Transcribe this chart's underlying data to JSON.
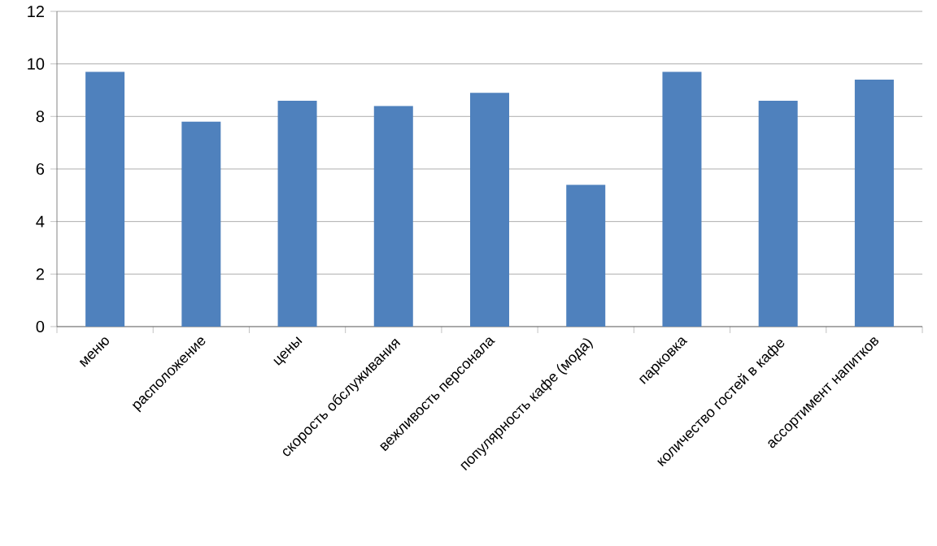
{
  "chart_data": {
    "type": "bar",
    "categories": [
      "меню",
      "расположение",
      "цены",
      "скорость обслуживания",
      "вежливость персонала",
      "популярность кафе (мода)",
      "парковка",
      "количество гостей в кафе",
      "ассортимент напитков"
    ],
    "values": [
      9.7,
      7.8,
      8.6,
      8.4,
      8.9,
      5.4,
      9.7,
      8.6,
      9.4
    ],
    "color": "#4f81bd",
    "ylim": [
      0,
      12
    ],
    "yticks": [
      0,
      2,
      4,
      6,
      8,
      10,
      12
    ],
    "grid": "y"
  }
}
